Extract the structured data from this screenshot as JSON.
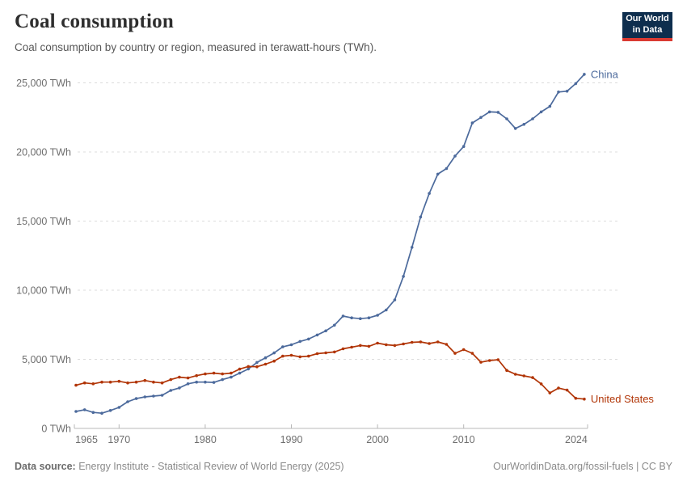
{
  "header": {
    "title": "Coal consumption",
    "subtitle": "Coal consumption by country or region, measured in terawatt-hours (TWh).",
    "logo": {
      "line1": "Our World",
      "line2": "in Data",
      "bg_color": "#0E2E4E",
      "bar_color": "#DA3A32"
    }
  },
  "chart_data": {
    "type": "line",
    "title": "Coal consumption",
    "subtitle": "Coal consumption by country or region, measured in terawatt-hours (TWh).",
    "unit": "TWh",
    "grid": "dashed-horizontal",
    "legend_position": "end-of-line-labels",
    "x": [
      1965,
      1966,
      1967,
      1968,
      1969,
      1970,
      1971,
      1972,
      1973,
      1974,
      1975,
      1976,
      1977,
      1978,
      1979,
      1980,
      1981,
      1982,
      1983,
      1984,
      1985,
      1986,
      1987,
      1988,
      1989,
      1990,
      1991,
      1992,
      1993,
      1994,
      1995,
      1996,
      1997,
      1998,
      1999,
      2000,
      2001,
      2002,
      2003,
      2004,
      2005,
      2006,
      2007,
      2008,
      2009,
      2010,
      2011,
      2012,
      2013,
      2014,
      2015,
      2016,
      2017,
      2018,
      2019,
      2020,
      2021,
      2022,
      2023,
      2024
    ],
    "xticks": [
      1965,
      1970,
      1980,
      1990,
      2000,
      2010,
      2024
    ],
    "yticks": [
      0,
      5000,
      10000,
      15000,
      20000,
      25000
    ],
    "ytick_labels": [
      "0 TWh",
      "5,000 TWh",
      "10,000 TWh",
      "15,000 TWh",
      "20,000 TWh",
      "25,000 TWh"
    ],
    "ylim": [
      0,
      26500
    ],
    "xlim": [
      1965,
      2024
    ],
    "series": [
      {
        "name": "China",
        "color": "#4C6A9C",
        "values": [
          1230,
          1350,
          1160,
          1100,
          1300,
          1520,
          1930,
          2160,
          2280,
          2340,
          2400,
          2750,
          2930,
          3230,
          3350,
          3350,
          3330,
          3530,
          3710,
          4000,
          4300,
          4770,
          5110,
          5460,
          5900,
          6050,
          6290,
          6470,
          6760,
          7060,
          7470,
          8130,
          8000,
          7940,
          8000,
          8190,
          8570,
          9300,
          11000,
          13100,
          15300,
          17000,
          18400,
          18800,
          19700,
          20400,
          22100,
          22500,
          22900,
          22870,
          22400,
          21700,
          22000,
          22400,
          22900,
          23300,
          24340,
          24400,
          24950,
          25620
        ]
      },
      {
        "name": "United States",
        "color": "#B13507",
        "values": [
          3120,
          3290,
          3230,
          3350,
          3350,
          3410,
          3290,
          3350,
          3470,
          3350,
          3290,
          3530,
          3710,
          3650,
          3820,
          3940,
          4000,
          3940,
          4000,
          4290,
          4480,
          4460,
          4650,
          4870,
          5230,
          5290,
          5180,
          5230,
          5410,
          5470,
          5530,
          5760,
          5880,
          6000,
          5940,
          6170,
          6050,
          6000,
          6110,
          6230,
          6260,
          6140,
          6260,
          6080,
          5430,
          5700,
          5430,
          4790,
          4910,
          4970,
          4200,
          3920,
          3800,
          3680,
          3220,
          2570,
          2920,
          2770,
          2180,
          2120
        ]
      }
    ],
    "colors": {
      "gridline": "#dcdcdc",
      "axis": "#b8b8b8",
      "tick_label": "#6e6e6e"
    }
  },
  "footer": {
    "source_label": "Data source:",
    "source_text": " Energy Institute - Statistical Review of World Energy (2025)",
    "credit": "OurWorldinData.org/fossil-fuels | CC BY"
  }
}
